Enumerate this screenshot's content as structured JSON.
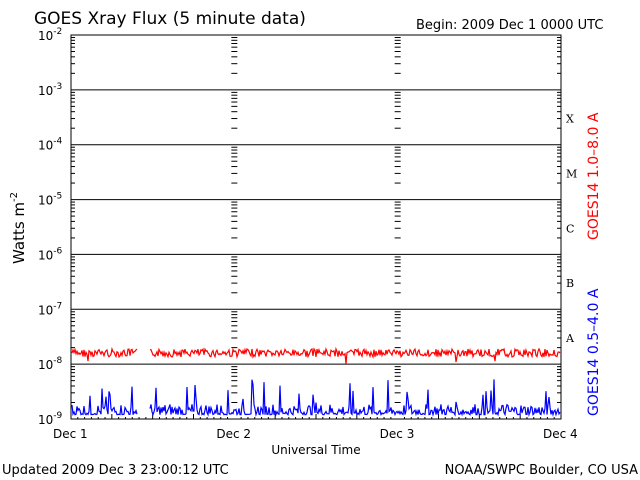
{
  "chart_data": {
    "type": "line",
    "title": "GOES Xray Flux (5 minute data)",
    "begin_label": "Begin:  2009 Dec 1 0000 UTC",
    "ylabel_text": "Watts m",
    "ylabel_sup": "-2",
    "xlabel": "Universal Time",
    "y_scale": "log",
    "ylim": [
      1e-09,
      0.01
    ],
    "y_ticks": [
      {
        "value": 0.01,
        "base": "10",
        "exp": "-2"
      },
      {
        "value": 0.001,
        "base": "10",
        "exp": "-3"
      },
      {
        "value": 0.0001,
        "base": "10",
        "exp": "-4"
      },
      {
        "value": 1e-05,
        "base": "10",
        "exp": "-5"
      },
      {
        "value": 1e-06,
        "base": "10",
        "exp": "-6"
      },
      {
        "value": 1e-07,
        "base": "10",
        "exp": "-7"
      },
      {
        "value": 1e-08,
        "base": "10",
        "exp": "-8"
      },
      {
        "value": 1e-09,
        "base": "10",
        "exp": "-9"
      }
    ],
    "x_ticks": [
      "Dec 1",
      "Dec 2",
      "Dec 3",
      "Dec 4"
    ],
    "x_range_days": [
      0,
      3
    ],
    "flare_classes": [
      {
        "label": "X",
        "value": 0.0003
      },
      {
        "label": "M",
        "value": 3e-05
      },
      {
        "label": "C",
        "value": 3e-06
      },
      {
        "label": "B",
        "value": 3e-07
      },
      {
        "label": "A",
        "value": 3e-08
      }
    ],
    "grid": true,
    "series": [
      {
        "name": "GOES14 1.0–8.0 A",
        "color": "#ff0000",
        "baseline": 1.6e-08,
        "gap_days": [
          0.41,
          0.48
        ]
      },
      {
        "name": "GOES14 0.5–4.0 A",
        "color": "#0000ff",
        "baseline": 1.2e-09,
        "gap_days": [
          0.41,
          0.48
        ]
      }
    ]
  },
  "footer": {
    "updated": "Updated 2009 Dec  3 23:00:12 UTC",
    "source": "NOAA/SWPC Boulder, CO USA"
  }
}
